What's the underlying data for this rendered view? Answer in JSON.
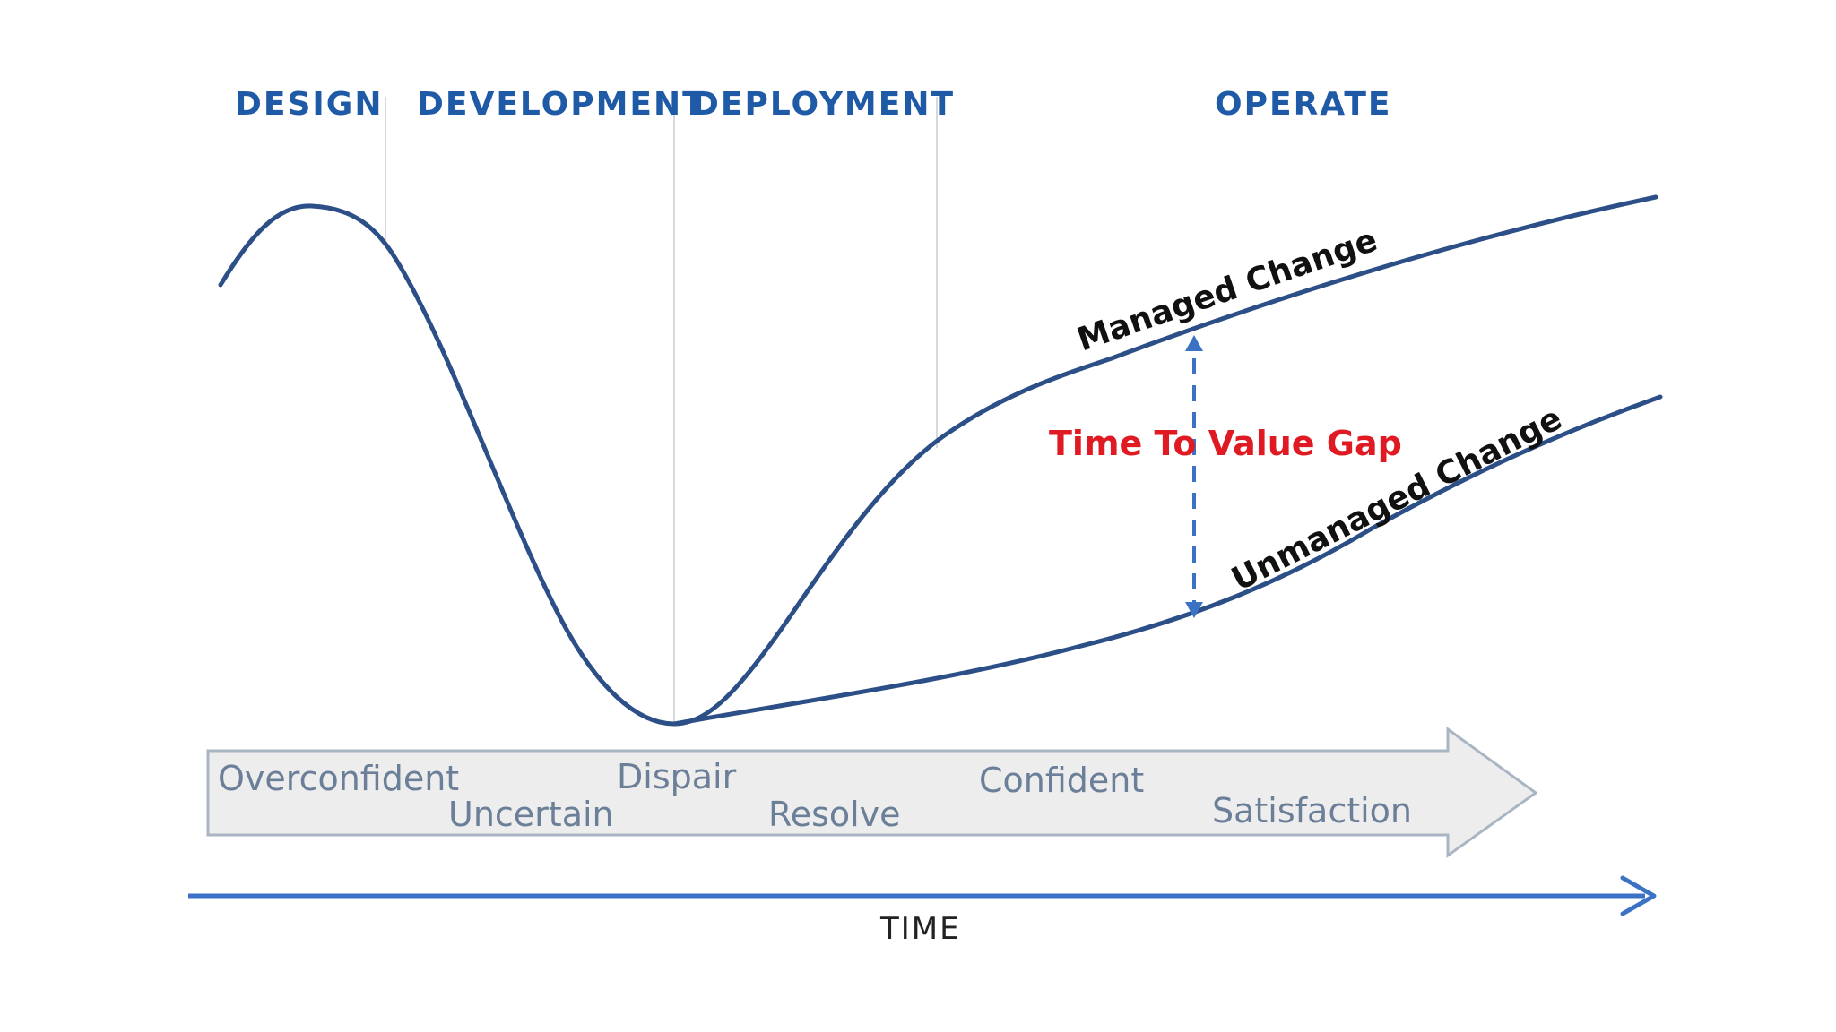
{
  "phases": {
    "design": "DESIGN",
    "development": "DEVELOPMENT",
    "deployment": "DEPLOYMENT",
    "operate": "OPERATE"
  },
  "emotions": {
    "overconfident": "Overconfident",
    "uncertain": "Uncertain",
    "dispair": "Dispair",
    "resolve": "Resolve",
    "confident": "Confident",
    "satisfaction": "Satisfaction"
  },
  "curves": {
    "managed": "Managed Change",
    "unmanaged": "Unmanaged Change"
  },
  "gap_label": "Time To Value Gap",
  "axis_label": "TIME",
  "colors": {
    "curve": "#2b4f86",
    "phase_text": "#1f5aa6",
    "gap_text": "#e01a22",
    "gap_arrow": "#3b72c4",
    "emotion_text": "#6b7f99",
    "band_fill": "#ededed",
    "band_stroke": "#aab5c4",
    "time_axis": "#3b72c4",
    "divider": "#d6d9de"
  }
}
